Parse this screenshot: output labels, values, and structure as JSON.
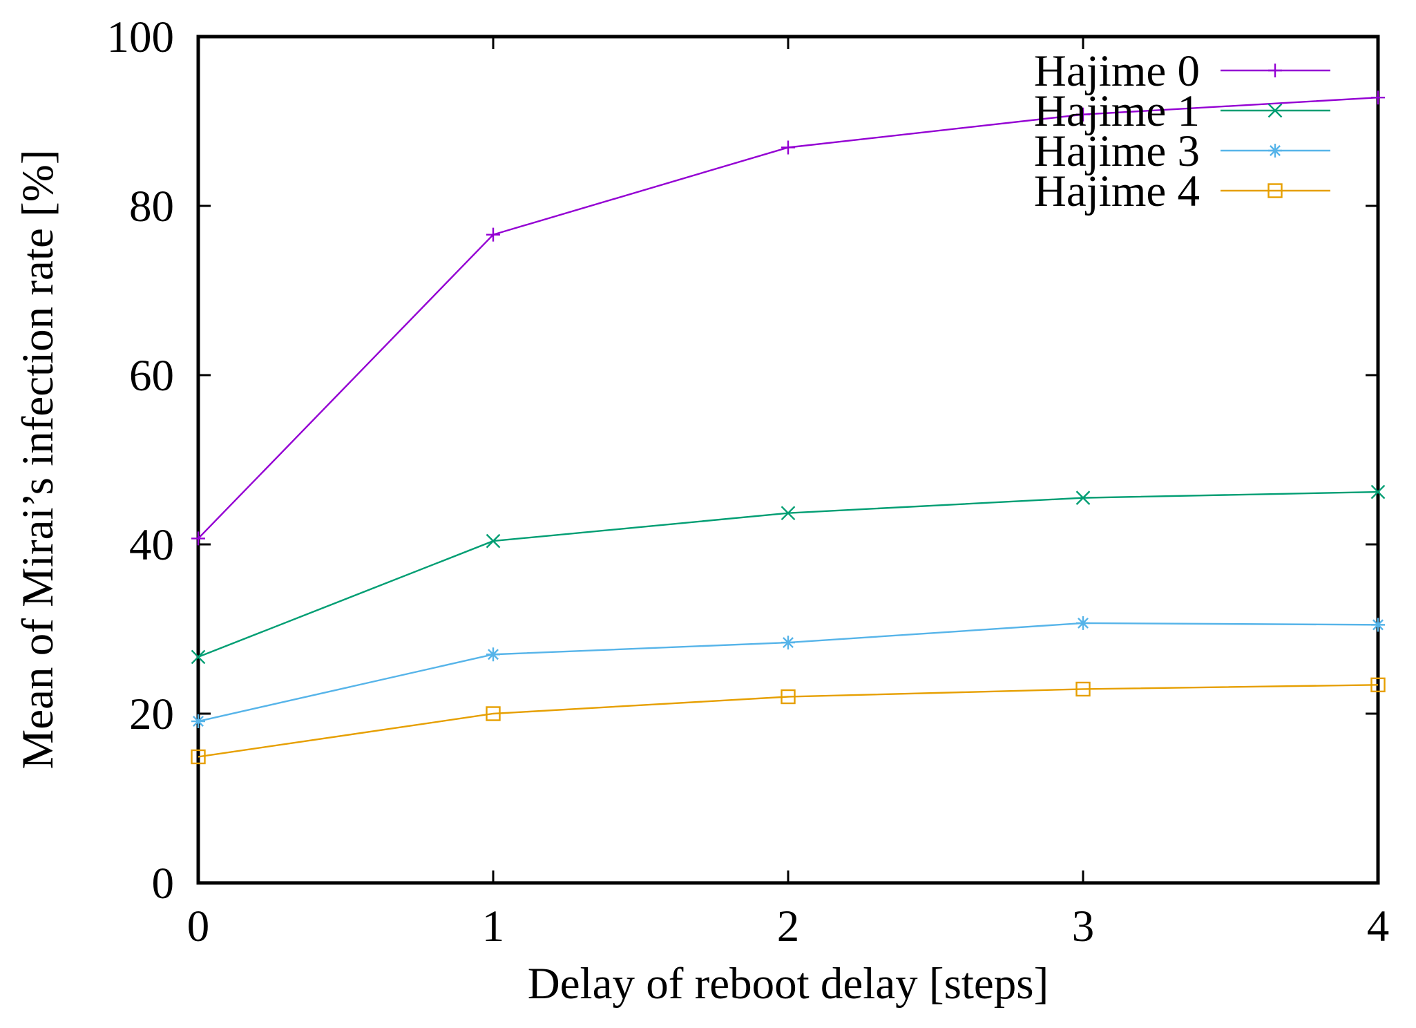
{
  "figure": {
    "background": "#ffffff",
    "border_color": "#000000",
    "text_color": "#000000"
  },
  "chart_data": {
    "type": "line",
    "title": "",
    "xlabel": "Delay of reboot delay [steps]",
    "ylabel": "Mean of Mirai’s infection rate [%]",
    "xlim": [
      0,
      4
    ],
    "ylim": [
      0,
      100
    ],
    "xticks": [
      0,
      1,
      2,
      3,
      4
    ],
    "yticks": [
      0,
      20,
      40,
      60,
      80,
      100
    ],
    "grid": false,
    "legend_position": "top-right-inside",
    "x": [
      0,
      1,
      2,
      3,
      4
    ],
    "series": [
      {
        "name": "Hajime 0",
        "color": "#9400d3",
        "marker": "plus",
        "values": [
          40.7,
          76.6,
          86.9,
          90.8,
          92.8
        ]
      },
      {
        "name": "Hajime 1",
        "color": "#009e73",
        "marker": "cross",
        "values": [
          26.7,
          40.4,
          43.7,
          45.5,
          46.2
        ]
      },
      {
        "name": "Hajime 3",
        "color": "#56b4e9",
        "marker": "asterisk",
        "values": [
          19.1,
          27.0,
          28.4,
          30.7,
          30.5
        ]
      },
      {
        "name": "Hajime 4",
        "color": "#e69f00",
        "marker": "square-open",
        "values": [
          14.9,
          20.0,
          22.0,
          22.9,
          23.4
        ]
      }
    ]
  }
}
